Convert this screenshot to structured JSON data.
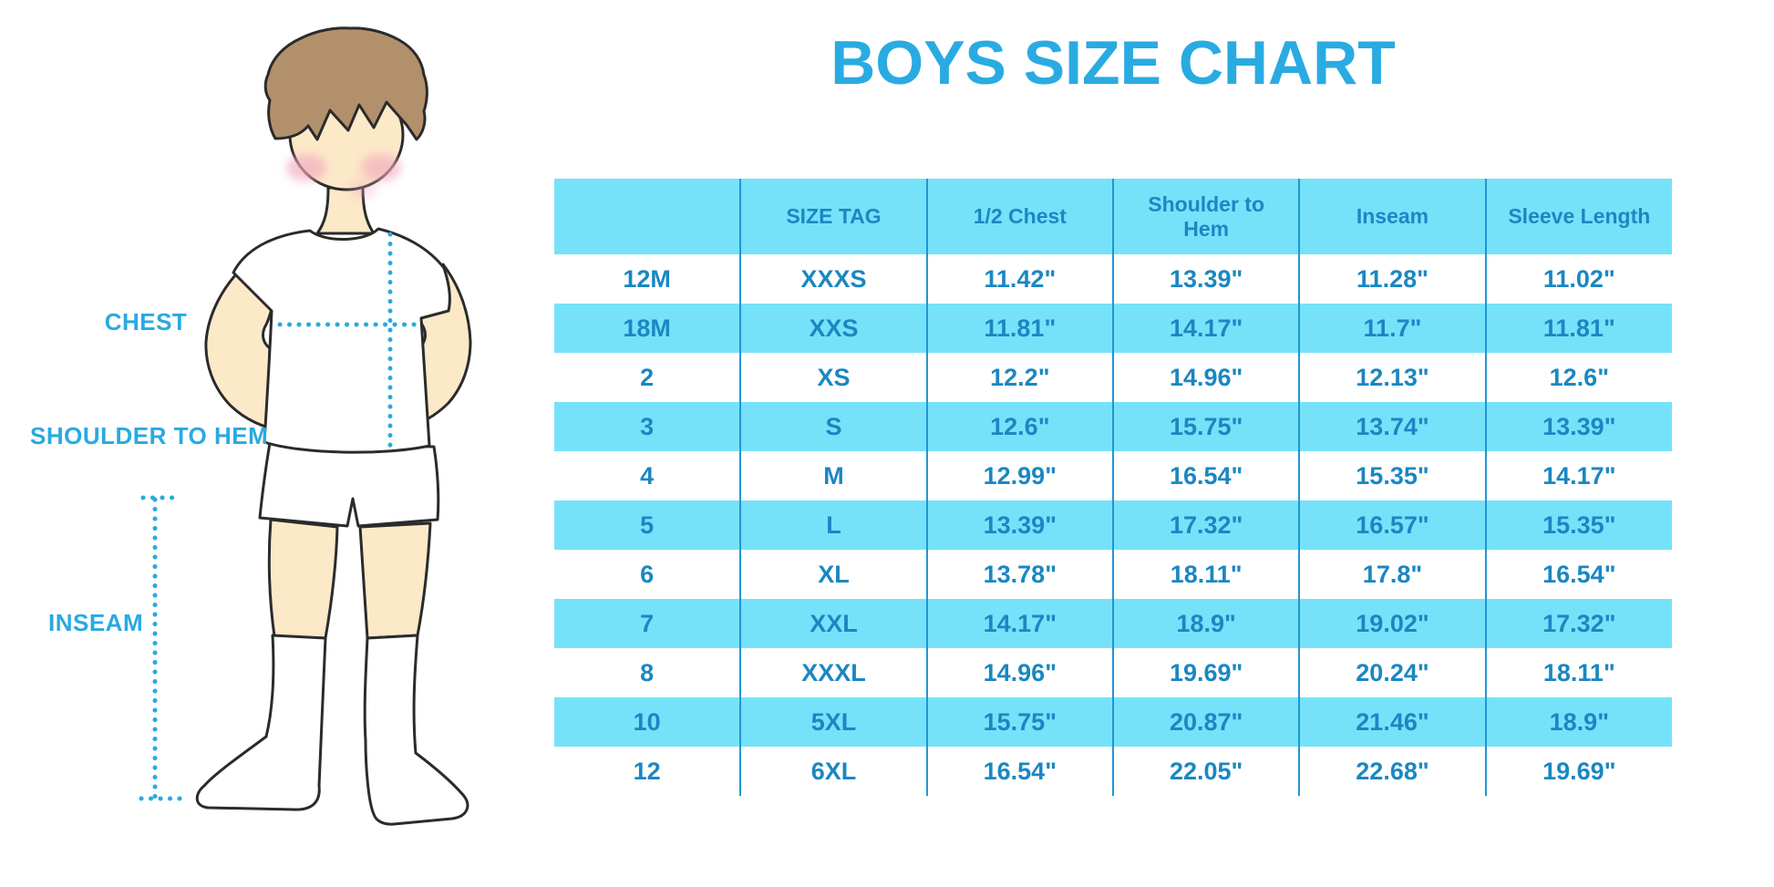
{
  "title": "BOYS SIZE CHART",
  "colors": {
    "accent_blue": "#29ABE2",
    "table_text_blue": "#1B87C2",
    "row_highlight_cyan": "#76E2FA",
    "column_divider_blue": "#2196D3",
    "dotted_line_blue": "#29A9E2",
    "skin": "#FBE9C8",
    "hair_brown": "#B3906C",
    "cheek_pink": "#F2A9BF",
    "outline": "#2B2B2B"
  },
  "figure": {
    "description": "boy-illustration-with-measurement-lines",
    "labels": {
      "chest": "CHEST",
      "shoulder_to_hem": "SHOULDER TO HEM",
      "inseam": "INSEAM"
    }
  },
  "chart_data": {
    "type": "table",
    "title": "BOYS SIZE CHART",
    "units": "inches",
    "columns": [
      "",
      "SIZE TAG",
      "1/2 Chest",
      "Shoulder to Hem",
      "Inseam",
      "Sleeve Length"
    ],
    "rows": [
      [
        "12M",
        "XXXS",
        "11.42\"",
        "13.39\"",
        "11.28\"",
        "11.02\""
      ],
      [
        "18M",
        "XXS",
        "11.81\"",
        "14.17\"",
        "11.7\"",
        "11.81\""
      ],
      [
        "2",
        "XS",
        "12.2\"",
        "14.96\"",
        "12.13\"",
        "12.6\""
      ],
      [
        "3",
        "S",
        "12.6\"",
        "15.75\"",
        "13.74\"",
        "13.39\""
      ],
      [
        "4",
        "M",
        "12.99\"",
        "16.54\"",
        "15.35\"",
        "14.17\""
      ],
      [
        "5",
        "L",
        "13.39\"",
        "17.32\"",
        "16.57\"",
        "15.35\""
      ],
      [
        "6",
        "XL",
        "13.78\"",
        "18.11\"",
        "17.8\"",
        "16.54\""
      ],
      [
        "7",
        "XXL",
        "14.17\"",
        "18.9\"",
        "19.02\"",
        "17.32\""
      ],
      [
        "8",
        "XXXL",
        "14.96\"",
        "19.69\"",
        "20.24\"",
        "18.11\""
      ],
      [
        "10",
        "5XL",
        "15.75\"",
        "20.87\"",
        "21.46\"",
        "18.9\""
      ],
      [
        "12",
        "6XL",
        "16.54\"",
        "22.05\"",
        "22.68\"",
        "19.69\""
      ]
    ],
    "annotated_measurements": [
      "CHEST",
      "SHOULDER TO HEM",
      "INSEAM"
    ],
    "layout": "boy illustration left, title top-center-right, alternating cyan/white rows, blue column dividers"
  }
}
